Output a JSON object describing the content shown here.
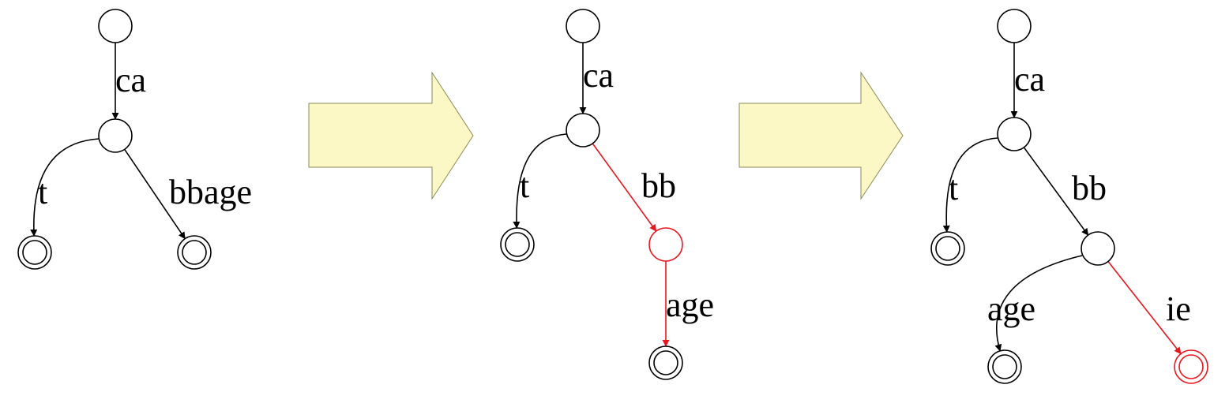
{
  "colors": {
    "normal": "#000000",
    "highlight": "#e8161d",
    "arrow_fill": "#fbf8c6",
    "arrow_stroke": "#8a8a55"
  },
  "panels": [
    {
      "nodes": [
        {
          "id": "root",
          "accepting": false,
          "highlight": false
        },
        {
          "id": "n1",
          "accepting": false,
          "highlight": false
        },
        {
          "id": "leaf-t",
          "accepting": true,
          "highlight": false
        },
        {
          "id": "leaf-bbage",
          "accepting": true,
          "highlight": false
        }
      ],
      "edges": [
        {
          "from": "root",
          "to": "n1",
          "label": "ca",
          "highlight": false
        },
        {
          "from": "n1",
          "to": "leaf-t",
          "label": "t",
          "highlight": false
        },
        {
          "from": "n1",
          "to": "leaf-bbage",
          "label": "bbage",
          "highlight": false
        }
      ]
    },
    {
      "nodes": [
        {
          "id": "root",
          "accepting": false,
          "highlight": false
        },
        {
          "id": "n1",
          "accepting": false,
          "highlight": false
        },
        {
          "id": "leaf-t",
          "accepting": true,
          "highlight": false
        },
        {
          "id": "n-bb",
          "accepting": false,
          "highlight": true
        },
        {
          "id": "leaf-age",
          "accepting": true,
          "highlight": false
        }
      ],
      "edges": [
        {
          "from": "root",
          "to": "n1",
          "label": "ca",
          "highlight": false
        },
        {
          "from": "n1",
          "to": "leaf-t",
          "label": "t",
          "highlight": false
        },
        {
          "from": "n1",
          "to": "n-bb",
          "label": "bb",
          "highlight": true
        },
        {
          "from": "n-bb",
          "to": "leaf-age",
          "label": "age",
          "highlight": true
        }
      ]
    },
    {
      "nodes": [
        {
          "id": "root",
          "accepting": false,
          "highlight": false
        },
        {
          "id": "n1",
          "accepting": false,
          "highlight": false
        },
        {
          "id": "leaf-t",
          "accepting": true,
          "highlight": false
        },
        {
          "id": "n-bb",
          "accepting": false,
          "highlight": false
        },
        {
          "id": "leaf-age",
          "accepting": true,
          "highlight": false
        },
        {
          "id": "leaf-ie",
          "accepting": true,
          "highlight": true
        }
      ],
      "edges": [
        {
          "from": "root",
          "to": "n1",
          "label": "ca",
          "highlight": false
        },
        {
          "from": "n1",
          "to": "leaf-t",
          "label": "t",
          "highlight": false
        },
        {
          "from": "n1",
          "to": "n-bb",
          "label": "bb",
          "highlight": false
        },
        {
          "from": "n-bb",
          "to": "leaf-age",
          "label": "age",
          "highlight": false
        },
        {
          "from": "n-bb",
          "to": "leaf-ie",
          "label": "ie",
          "highlight": true
        }
      ]
    }
  ],
  "transitions": [
    {
      "icon": "right-arrow-icon"
    },
    {
      "icon": "right-arrow-icon"
    }
  ]
}
